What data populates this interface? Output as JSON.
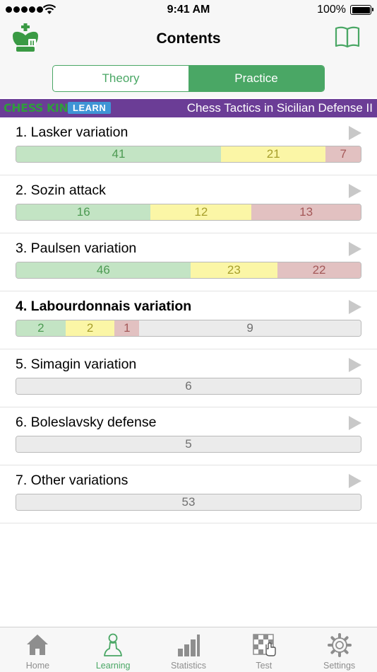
{
  "status": {
    "time": "9:41 AM",
    "battery": "100%"
  },
  "nav": {
    "title": "Contents"
  },
  "segments": [
    {
      "label": "Theory",
      "active": false
    },
    {
      "label": "Practice",
      "active": true
    }
  ],
  "banner": {
    "brand": "CHESS KING",
    "badge": "LEARN",
    "course_title": "Chess Tactics in Sicilian Defense II"
  },
  "chapters": [
    {
      "title": "1. Lasker variation",
      "bold": false,
      "counts": {
        "solved": "41",
        "partial": "21",
        "failed": "7",
        "remaining": ""
      }
    },
    {
      "title": "2. Sozin attack",
      "bold": false,
      "counts": {
        "solved": "16",
        "partial": "12",
        "failed": "13",
        "remaining": ""
      }
    },
    {
      "title": "3. Paulsen variation",
      "bold": false,
      "counts": {
        "solved": "46",
        "partial": "23",
        "failed": "22",
        "remaining": ""
      }
    },
    {
      "title": "4. Labourdonnais variation",
      "bold": true,
      "counts": {
        "solved": "2",
        "partial": "2",
        "failed": "1",
        "remaining": "9"
      }
    },
    {
      "title": "5. Simagin variation",
      "bold": false,
      "counts": {
        "solved": "",
        "partial": "",
        "failed": "",
        "remaining": "6"
      }
    },
    {
      "title": "6. Boleslavsky defense",
      "bold": false,
      "counts": {
        "solved": "",
        "partial": "",
        "failed": "",
        "remaining": "5"
      }
    },
    {
      "title": "7. Other variations",
      "bold": false,
      "counts": {
        "solved": "",
        "partial": "",
        "failed": "",
        "remaining": "53"
      }
    }
  ],
  "tabs": [
    {
      "label": "Home",
      "icon": "home-icon",
      "active": false
    },
    {
      "label": "Learning",
      "icon": "pawn-icon",
      "active": true
    },
    {
      "label": "Statistics",
      "icon": "bar-chart-icon",
      "active": false
    },
    {
      "label": "Test",
      "icon": "test-board-icon",
      "active": false
    },
    {
      "label": "Settings",
      "icon": "gear-icon",
      "active": false
    }
  ],
  "colors": {
    "accent": "#4aa765",
    "banner": "#6b3d96",
    "solved": "#c3e4c4",
    "partial": "#fbf6a6",
    "failed": "#e2c1c1",
    "remaining": "#ebebeb"
  }
}
